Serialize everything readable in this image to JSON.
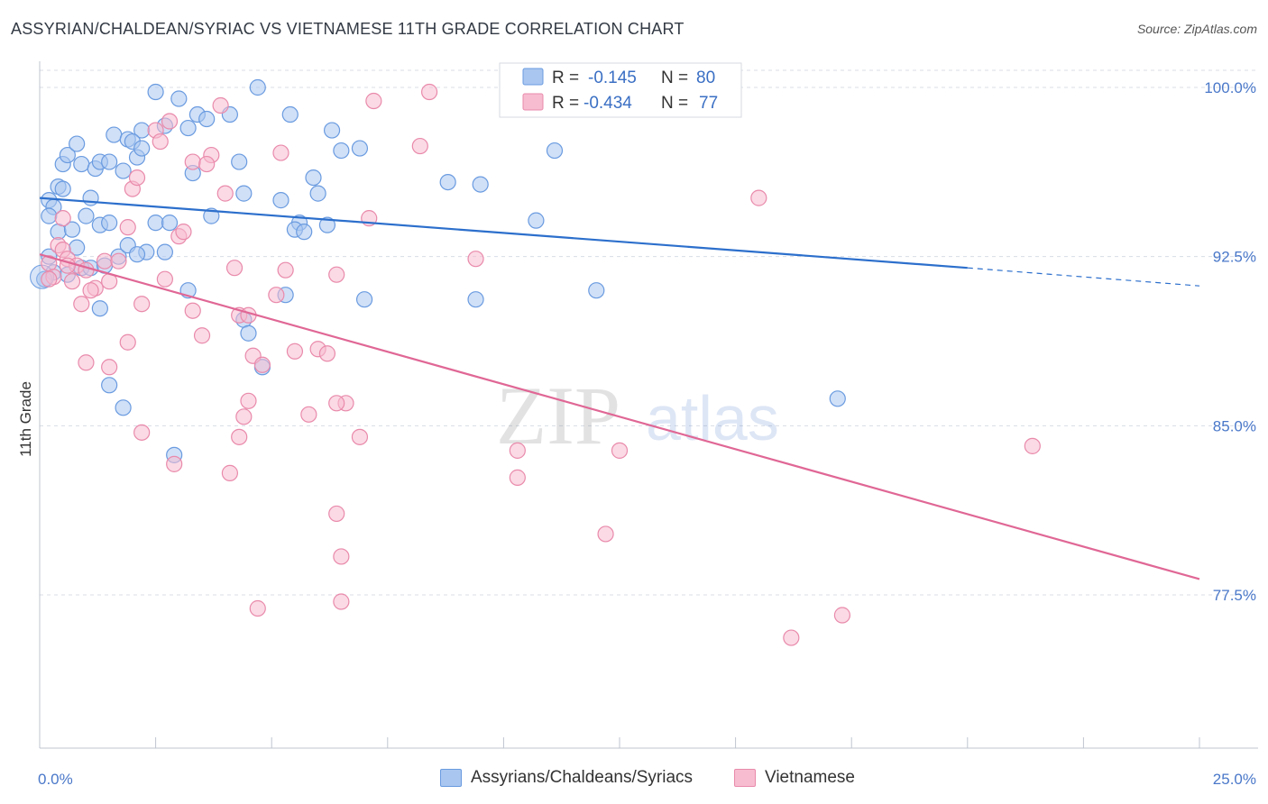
{
  "header": {
    "title": "ASSYRIAN/CHALDEAN/SYRIAC VS VIETNAMESE 11TH GRADE CORRELATION CHART",
    "source": "Source: ZipAtlas.com"
  },
  "colors": {
    "blue_fill": "#a9c6f0",
    "blue_stroke": "#6a9be0",
    "blue_line": "#2c6fcc",
    "pink_fill": "#f7bcd0",
    "pink_stroke": "#e98aab",
    "pink_line": "#e06795",
    "grid": "#d8dde6",
    "axis_text": "#4a78c9"
  },
  "legend": {
    "rows": [
      {
        "r_label": "R =",
        "r_value": "-0.145",
        "n_label": "N =",
        "n_value": "80"
      },
      {
        "r_label": "R =",
        "r_value": "-0.434",
        "n_label": "N =",
        "n_value": "77"
      }
    ]
  },
  "watermark": {
    "zip": "ZIP",
    "atlas": "atlas"
  },
  "chart_data": {
    "type": "scatter",
    "title": "ASSYRIAN/CHALDEAN/SYRIAC VS VIETNAMESE 11TH GRADE CORRELATION CHART",
    "xlabel": "",
    "ylabel": "11th Grade",
    "xlim": [
      0,
      25
    ],
    "ylim": [
      71,
      101.5
    ],
    "x_tick_labels": [
      "0.0%",
      "25.0%"
    ],
    "y_ticks": [
      77.5,
      85.0,
      92.5,
      100.0
    ],
    "y_tick_labels": [
      "77.5%",
      "85.0%",
      "92.5%",
      "100.0%"
    ],
    "grid": true,
    "legend_position": "top-center",
    "series": [
      {
        "name": "Assyrians/Chaldeans/Syriacs",
        "color": "#a9c6f0",
        "trend": {
          "x": [
            0.0,
            20.0
          ],
          "y": [
            95.1,
            92.0
          ],
          "dashed_to_x": 25.0,
          "dashed_to_y": 91.2
        },
        "points": [
          [
            0.2,
            95
          ],
          [
            0.3,
            94.7
          ],
          [
            0.4,
            95.6
          ],
          [
            0.5,
            96.6
          ],
          [
            0.6,
            97
          ],
          [
            0.8,
            97.5
          ],
          [
            0.9,
            96.6
          ],
          [
            1.0,
            94.3
          ],
          [
            1.2,
            96.4
          ],
          [
            1.3,
            96.7
          ],
          [
            1.5,
            96.7
          ],
          [
            1.6,
            97.9
          ],
          [
            1.8,
            96.3
          ],
          [
            1.9,
            97.7
          ],
          [
            2.1,
            96.9
          ],
          [
            2.2,
            98.1
          ],
          [
            2.5,
            99.8
          ],
          [
            2.7,
            98.3
          ],
          [
            3.0,
            99.5
          ],
          [
            3.2,
            98.2
          ],
          [
            3.4,
            98.8
          ],
          [
            3.6,
            98.6
          ],
          [
            4.1,
            98.8
          ],
          [
            4.3,
            96.7
          ],
          [
            4.4,
            95.3
          ],
          [
            4.7,
            100
          ],
          [
            5.2,
            95
          ],
          [
            5.4,
            98.8
          ],
          [
            5.6,
            94.0
          ],
          [
            5.9,
            96.0
          ],
          [
            6.0,
            95.3
          ],
          [
            6.2,
            93.9
          ],
          [
            6.3,
            98.1
          ],
          [
            6.5,
            97.2
          ],
          [
            6.9,
            97.3
          ],
          [
            0.2,
            94.3
          ],
          [
            0.4,
            93.6
          ],
          [
            0.7,
            93.7
          ],
          [
            0.8,
            92.9
          ],
          [
            1.1,
            95.1
          ],
          [
            1.3,
            93.9
          ],
          [
            1.5,
            94.0
          ],
          [
            1.7,
            92.5
          ],
          [
            1.9,
            93.0
          ],
          [
            2.3,
            92.7
          ],
          [
            2.5,
            94.0
          ],
          [
            2.7,
            92.7
          ],
          [
            2.8,
            94.0
          ],
          [
            3.2,
            91.0
          ],
          [
            0.2,
            92.5
          ],
          [
            0.3,
            91.8
          ],
          [
            0.6,
            91.7
          ],
          [
            0.9,
            92.0
          ],
          [
            1.1,
            92.0
          ],
          [
            1.3,
            90.2
          ],
          [
            2.0,
            97.6
          ],
          [
            2.2,
            97.3
          ],
          [
            4.4,
            89.7
          ],
          [
            4.5,
            89.1
          ],
          [
            4.8,
            87.6
          ],
          [
            5.3,
            90.8
          ],
          [
            5.5,
            93.7
          ],
          [
            5.7,
            93.6
          ],
          [
            7.0,
            90.6
          ],
          [
            8.8,
            95.8
          ],
          [
            9.4,
            90.6
          ],
          [
            9.5,
            95.7
          ],
          [
            10.7,
            94.1
          ],
          [
            11.1,
            97.2
          ],
          [
            12.0,
            91.0
          ],
          [
            17.2,
            86.2
          ],
          [
            1.5,
            86.8
          ],
          [
            1.8,
            85.8
          ],
          [
            2.9,
            83.7
          ],
          [
            0.1,
            91.5
          ],
          [
            3.3,
            96.2
          ],
          [
            3.7,
            94.3
          ],
          [
            2.1,
            92.6
          ],
          [
            0.5,
            95.5
          ],
          [
            1.4,
            92.1
          ]
        ]
      },
      {
        "name": "Vietnamese",
        "color": "#f7bcd0",
        "trend": {
          "x": [
            0.0,
            25.0
          ],
          "y": [
            92.6,
            78.2
          ]
        },
        "points": [
          [
            0.2,
            92.2
          ],
          [
            0.3,
            91.6
          ],
          [
            0.4,
            93.0
          ],
          [
            0.5,
            92.8
          ],
          [
            0.6,
            92.4
          ],
          [
            0.7,
            91.4
          ],
          [
            0.8,
            92.1
          ],
          [
            0.9,
            90.4
          ],
          [
            1.0,
            91.9
          ],
          [
            1.2,
            91.1
          ],
          [
            1.4,
            92.3
          ],
          [
            1.5,
            91.4
          ],
          [
            1.7,
            92.3
          ],
          [
            1.9,
            93.8
          ],
          [
            2.0,
            95.5
          ],
          [
            2.1,
            96.0
          ],
          [
            2.2,
            90.4
          ],
          [
            2.5,
            98.1
          ],
          [
            2.6,
            97.6
          ],
          [
            2.7,
            91.5
          ],
          [
            3.0,
            93.4
          ],
          [
            3.1,
            93.6
          ],
          [
            3.3,
            90.1
          ],
          [
            3.5,
            89.0
          ],
          [
            3.7,
            97.0
          ],
          [
            3.9,
            99.2
          ],
          [
            4.0,
            95.3
          ],
          [
            4.2,
            92.0
          ],
          [
            4.3,
            89.9
          ],
          [
            4.5,
            89.9
          ],
          [
            4.6,
            88.1
          ],
          [
            4.8,
            87.7
          ],
          [
            5.1,
            90.8
          ],
          [
            5.3,
            91.9
          ],
          [
            5.5,
            88.3
          ],
          [
            5.8,
            85.5
          ],
          [
            6.0,
            88.4
          ],
          [
            6.2,
            88.2
          ],
          [
            6.4,
            91.7
          ],
          [
            6.6,
            86.0
          ],
          [
            0.2,
            91.5
          ],
          [
            0.5,
            94.2
          ],
          [
            1.0,
            87.8
          ],
          [
            1.5,
            87.6
          ],
          [
            1.9,
            88.7
          ],
          [
            2.2,
            84.7
          ],
          [
            2.9,
            83.3
          ],
          [
            4.1,
            82.9
          ],
          [
            4.3,
            84.5
          ],
          [
            4.4,
            85.4
          ],
          [
            4.5,
            86.1
          ],
          [
            4.7,
            76.9
          ],
          [
            5.2,
            97.1
          ],
          [
            6.9,
            84.5
          ],
          [
            7.1,
            94.2
          ],
          [
            7.2,
            99.4
          ],
          [
            8.2,
            97.4
          ],
          [
            8.4,
            99.8
          ],
          [
            9.4,
            92.4
          ],
          [
            10.2,
            100.0
          ],
          [
            10.3,
            83.9
          ],
          [
            10.3,
            82.7
          ],
          [
            12.2,
            80.2
          ],
          [
            12.5,
            83.9
          ],
          [
            15.5,
            95.1
          ],
          [
            17.3,
            76.6
          ],
          [
            16.2,
            75.6
          ],
          [
            21.4,
            84.1
          ],
          [
            6.4,
            86.0
          ],
          [
            6.4,
            81.1
          ],
          [
            6.5,
            79.2
          ],
          [
            6.5,
            77.2
          ],
          [
            3.3,
            96.7
          ],
          [
            3.6,
            96.6
          ],
          [
            1.1,
            91.0
          ],
          [
            0.6,
            92.1
          ],
          [
            2.8,
            98.5
          ]
        ]
      }
    ]
  },
  "bottom_legend": {
    "items": [
      {
        "label": "Assyrians/Chaldeans/Syriacs",
        "color": "#a9c6f0"
      },
      {
        "label": "Vietnamese",
        "color": "#f7bcd0"
      }
    ]
  }
}
